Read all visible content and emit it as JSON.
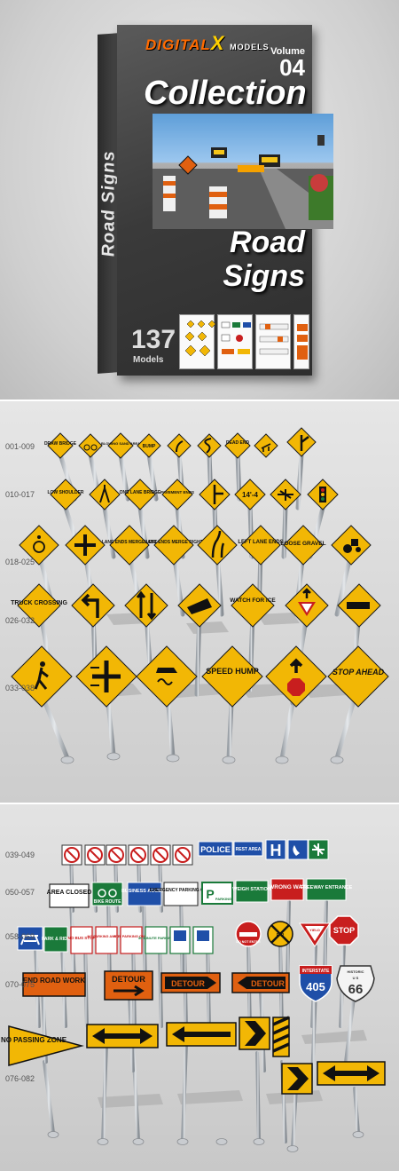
{
  "cover": {
    "brand": "DIGITAL",
    "brand_x": "X",
    "brand_models": "MODELS",
    "volume_label": "Volume",
    "volume_number": "04",
    "collection": "Collection",
    "title_line1": "Road",
    "title_line2": "Signs",
    "side_text": "Road Signs",
    "count": "137",
    "count_label": "Models"
  },
  "panel2": {
    "row_labels": [
      "001-009",
      "010-017",
      "018-025",
      "026-032",
      "033-038"
    ],
    "rows": [
      [
        "DRAW BRIDGE",
        "bicycle",
        "BLOWING SAND AREA",
        "BUMP",
        "curve-right",
        "winding-road",
        "DEAD END",
        "deer",
        "side-road"
      ],
      [
        "LOW SHOULDER",
        "merge-lanes",
        "ONE LANE BRIDGE",
        "PAVEMENT ENDS",
        "side-road-left",
        "14'-4",
        "airplane",
        "traffic-light"
      ],
      [
        "handicap",
        "crossroads",
        "LANE ENDS MERGE LEFT",
        "LANE ENDS MERGE RIGHT",
        "lane-shift",
        "LEFT LANE ENDS",
        "LOOSE GRAVEL",
        "tractor"
      ],
      [
        "TRUCK CROSSING",
        "turn-left",
        "two-way-traffic",
        "truck-tipping",
        "WATCH FOR ICE",
        "yield-ahead",
        "fire-truck"
      ],
      [
        "pedestrian",
        "railroad-crossing",
        "slippery-road",
        "SPEED HUMP",
        "stop-ahead-symbol",
        "STOP AHEAD"
      ]
    ]
  },
  "panel3": {
    "row_labels": [
      "039-049",
      "050-057",
      "058-069",
      "070-075",
      "076-082"
    ],
    "row1_labels": [
      "POLICE",
      "REST AREA",
      "H"
    ],
    "row2_labels": [
      "AREA CLOSED",
      "BIKE ROUTE",
      "BUSINESS ACCESS",
      "EMERGENCY PARKING ONLY",
      "P",
      "PARKING",
      "WEIGH STATION",
      "WRONG WAY",
      "FREEWAY ENTRANCE"
    ],
    "row3_labels": [
      "PARK & RIDE",
      "NO BUS STOP",
      "NO PARKING ANY TIME",
      "BUS PARKING ONLY",
      "30 MINUTE PARKING",
      "DO NOT ENTER",
      "R R",
      "YIELD",
      "STOP"
    ],
    "row4_labels": [
      "END ROAD WORK",
      "DETOUR",
      "DETOUR",
      "DETOUR",
      "INTERSTATE",
      "405",
      "HISTORIC",
      "U S",
      "66"
    ],
    "row5_labels": [
      "NO PASSING ZONE"
    ]
  },
  "colors": {
    "warning_yellow": "#f2b705",
    "sign_border": "#1a1a1a",
    "detour_orange": "#e06010",
    "guide_green": "#1a7a3a",
    "service_blue": "#1f4fa8",
    "stop_red": "#c81e1e"
  }
}
